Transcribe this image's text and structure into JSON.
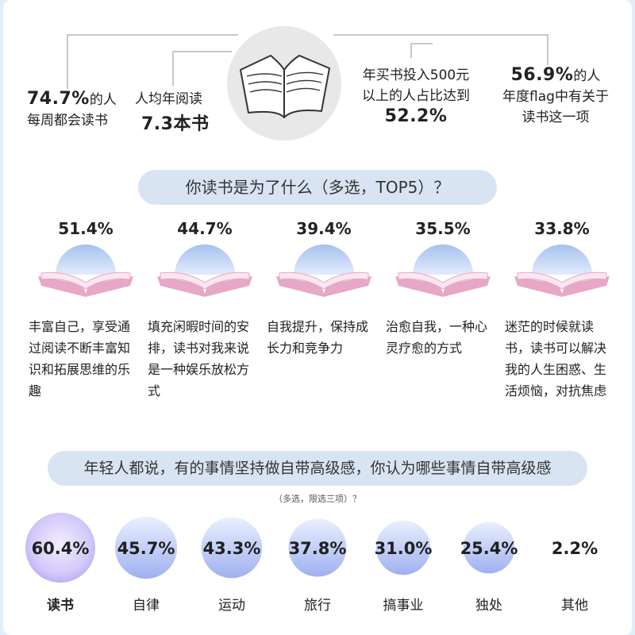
{
  "stats": [
    {
      "line1": "74.7%",
      "line1_suffix": "的人",
      "line2": "每周都会读书"
    },
    {
      "line1": "人均年阅读",
      "line2": "7.3本书"
    },
    {
      "line1": "年买书投入500元",
      "line2": "以上的人占比达到",
      "line3": "52.2%"
    },
    {
      "line1": "56.9%",
      "line1_suffix": "的人",
      "line2": "年度flag中有关于",
      "line3": "读书这一项"
    }
  ],
  "q1": {
    "title": "你读书是为了什么（多选，TOP5）？"
  },
  "q2": {
    "title": "年轻人都说，有的事情坚持做自带高级感，你认为哪些事情自带高级感",
    "subtitle": "（多选，限选三项）？"
  },
  "chart_data": [
    {
      "type": "bar",
      "title": "你读书是为了什么（多选，TOP5）？",
      "categories": [
        "丰富自己，享受通过阅读不断丰富知识和拓展思维的乐趣",
        "填充闲暇时间的安排，读书对我来说是一种娱乐放松方式",
        "自我提升，保持成长力和竞争力",
        "治愈自我，一种心灵疗愈的方式",
        "迷茫的时候就读书，读书可以解决我的人生困惑、生活烦恼，对抗焦虑"
      ],
      "values": [
        51.4,
        44.7,
        39.4,
        35.5,
        33.8
      ],
      "value_labels": [
        "51.4%",
        "44.7%",
        "39.4%",
        "35.5%",
        "33.8%"
      ]
    },
    {
      "type": "scatter",
      "title": "年轻人都说，有的事情坚持做自带高级感，你认为哪些事情自带高级感",
      "categories": [
        "读书",
        "自律",
        "运动",
        "旅行",
        "搞事业",
        "独处",
        "其他"
      ],
      "values": [
        60.4,
        45.7,
        43.3,
        37.8,
        31.0,
        25.4,
        2.2
      ],
      "value_labels": [
        "60.4%",
        "45.7%",
        "43.3%",
        "37.8%",
        "31.0%",
        "25.4%",
        "2.2%"
      ]
    }
  ],
  "colors": {
    "dome_top": "#a9c4f0",
    "dome_bottom": "#dde8fb",
    "book_cover": "#e7a7c6",
    "book_page": "#fbe6ef",
    "pill": "#d9e4f3",
    "bubble_top": "#e4ecfd",
    "bubble_bottom": "#9fb4f0"
  },
  "icons": {
    "top_center": "open-book-icon",
    "reason": "book-dome-icon"
  }
}
